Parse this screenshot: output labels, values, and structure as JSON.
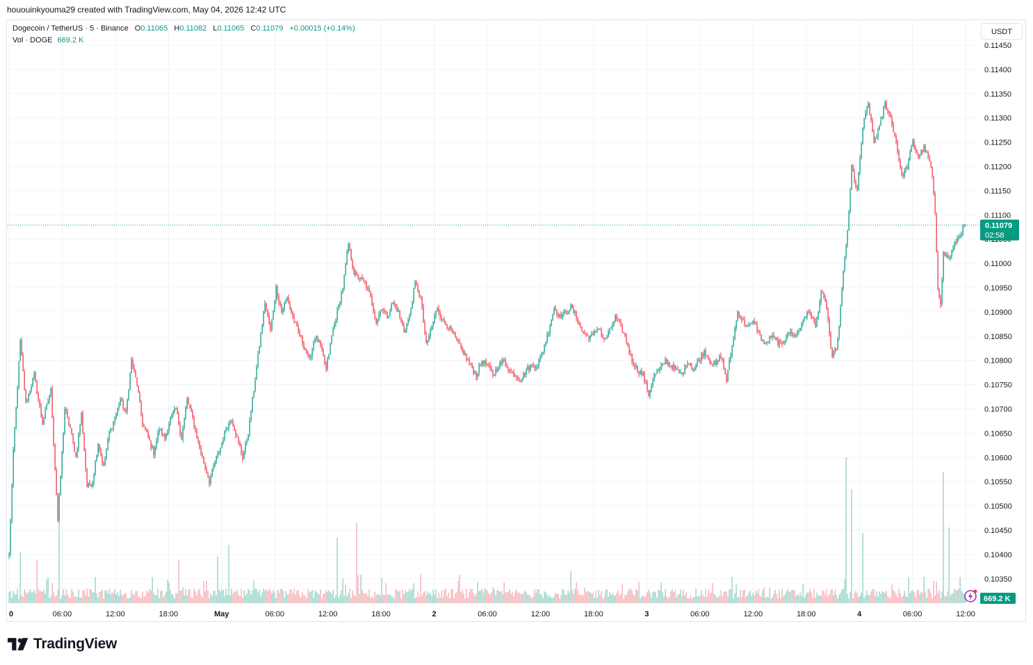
{
  "header": {
    "author_line": "hououinkyouma29 created with TradingView.com, May 04, 2026 12:42 UTC"
  },
  "legend": {
    "symbol": "Dogecoin / TetherUS · 5 · Binance",
    "open_label": "O",
    "open": "0.11065",
    "high_label": "H",
    "high": "0.11082",
    "low_label": "L",
    "low": "0.11065",
    "close_label": "C",
    "close": "0.11079",
    "change": "+0.00015 (+0.14%)",
    "volume_label": "Vol · DOGE",
    "volume_value": "669.2 K"
  },
  "price_scale": {
    "currency": "USDT",
    "last_price": "0.11079",
    "countdown": "02:58",
    "volume_badge": "669.2 K"
  },
  "brand": {
    "name": "TradingView"
  },
  "colors": {
    "up": "#089981",
    "down": "#f23645",
    "up_volume": "#8fcfc3",
    "down_volume": "#f4a9ae",
    "grid": "#f0f3fa",
    "text": "#131722"
  },
  "chart_data": {
    "type": "candlestick",
    "symbol": "Dogecoin / TetherUS",
    "interval": "5",
    "exchange": "Binance",
    "y_ticks": [
      "0.11450",
      "0.11400",
      "0.11350",
      "0.11300",
      "0.11250",
      "0.11200",
      "0.11150",
      "0.11100",
      "0.11050",
      "0.11000",
      "0.10950",
      "0.10900",
      "0.10850",
      "0.10800",
      "0.10750",
      "0.10700",
      "0.10650",
      "0.10600",
      "0.10550",
      "0.10500",
      "0.10450",
      "0.10400",
      "0.10350"
    ],
    "x_ticks": [
      "0",
      "06:00",
      "12:00",
      "18:00",
      "May",
      "06:00",
      "12:00",
      "18:00",
      "2",
      "06:00",
      "12:00",
      "18:00",
      "3",
      "06:00",
      "12:00",
      "18:00",
      "4",
      "06:00",
      "12:00"
    ],
    "ylim": [
      0.1032,
      0.1147
    ],
    "grid": true,
    "last_price": 0.11079,
    "price_path": [
      [
        0,
        0.104
      ],
      [
        3,
        0.1061
      ],
      [
        8,
        0.1084
      ],
      [
        12,
        0.1071
      ],
      [
        18,
        0.1077
      ],
      [
        24,
        0.1067
      ],
      [
        30,
        0.1074
      ],
      [
        35,
        0.1047
      ],
      [
        40,
        0.107
      ],
      [
        44,
        0.1066
      ],
      [
        48,
        0.106
      ],
      [
        52,
        0.1069
      ],
      [
        56,
        0.1054
      ],
      [
        60,
        0.1055
      ],
      [
        64,
        0.1063
      ],
      [
        68,
        0.1058
      ],
      [
        72,
        0.1065
      ],
      [
        76,
        0.1068
      ],
      [
        80,
        0.1072
      ],
      [
        84,
        0.1069
      ],
      [
        88,
        0.108
      ],
      [
        92,
        0.1075
      ],
      [
        96,
        0.1067
      ],
      [
        100,
        0.1064
      ],
      [
        104,
        0.1061
      ],
      [
        108,
        0.1066
      ],
      [
        112,
        0.1064
      ],
      [
        116,
        0.1068
      ],
      [
        120,
        0.107
      ],
      [
        124,
        0.1064
      ],
      [
        128,
        0.1072
      ],
      [
        132,
        0.1068
      ],
      [
        136,
        0.1063
      ],
      [
        140,
        0.1059
      ],
      [
        144,
        0.1055
      ],
      [
        148,
        0.1059
      ],
      [
        152,
        0.1062
      ],
      [
        156,
        0.1066
      ],
      [
        160,
        0.1068
      ],
      [
        164,
        0.1064
      ],
      [
        168,
        0.106
      ],
      [
        172,
        0.1065
      ],
      [
        176,
        0.1074
      ],
      [
        180,
        0.1083
      ],
      [
        184,
        0.1092
      ],
      [
        188,
        0.1086
      ],
      [
        192,
        0.1095
      ],
      [
        196,
        0.109
      ],
      [
        200,
        0.1093
      ],
      [
        204,
        0.1089
      ],
      [
        208,
        0.1086
      ],
      [
        212,
        0.1083
      ],
      [
        216,
        0.108
      ],
      [
        220,
        0.1085
      ],
      [
        224,
        0.1083
      ],
      [
        228,
        0.1078
      ],
      [
        232,
        0.1085
      ],
      [
        236,
        0.109
      ],
      [
        240,
        0.1095
      ],
      [
        244,
        0.1104
      ],
      [
        248,
        0.1098
      ],
      [
        252,
        0.1097
      ],
      [
        256,
        0.1096
      ],
      [
        260,
        0.1093
      ],
      [
        264,
        0.1088
      ],
      [
        268,
        0.1091
      ],
      [
        272,
        0.1089
      ],
      [
        276,
        0.1092
      ],
      [
        280,
        0.109
      ],
      [
        284,
        0.1086
      ],
      [
        288,
        0.1089
      ],
      [
        292,
        0.1096
      ],
      [
        296,
        0.1093
      ],
      [
        300,
        0.1083
      ],
      [
        304,
        0.1087
      ],
      [
        308,
        0.1091
      ],
      [
        312,
        0.1088
      ],
      [
        316,
        0.1087
      ],
      [
        320,
        0.1085
      ],
      [
        324,
        0.1083
      ],
      [
        328,
        0.1081
      ],
      [
        332,
        0.1079
      ],
      [
        336,
        0.1077
      ],
      [
        340,
        0.108
      ],
      [
        344,
        0.1079
      ],
      [
        348,
        0.1077
      ],
      [
        352,
        0.1079
      ],
      [
        356,
        0.108
      ],
      [
        360,
        0.1078
      ],
      [
        364,
        0.1077
      ],
      [
        368,
        0.1076
      ],
      [
        372,
        0.1078
      ],
      [
        376,
        0.1079
      ],
      [
        380,
        0.1079
      ],
      [
        384,
        0.1082
      ],
      [
        388,
        0.1086
      ],
      [
        392,
        0.1091
      ],
      [
        396,
        0.1089
      ],
      [
        400,
        0.109
      ],
      [
        404,
        0.1091
      ],
      [
        408,
        0.1089
      ],
      [
        412,
        0.1086
      ],
      [
        416,
        0.1085
      ],
      [
        420,
        0.1085
      ],
      [
        424,
        0.1087
      ],
      [
        428,
        0.1084
      ],
      [
        432,
        0.1086
      ],
      [
        436,
        0.1089
      ],
      [
        440,
        0.1087
      ],
      [
        444,
        0.1084
      ],
      [
        448,
        0.108
      ],
      [
        452,
        0.1078
      ],
      [
        456,
        0.1077
      ],
      [
        460,
        0.1073
      ],
      [
        464,
        0.1077
      ],
      [
        468,
        0.1078
      ],
      [
        472,
        0.108
      ],
      [
        476,
        0.1079
      ],
      [
        480,
        0.1078
      ],
      [
        484,
        0.1077
      ],
      [
        488,
        0.108
      ],
      [
        492,
        0.1078
      ],
      [
        496,
        0.108
      ],
      [
        500,
        0.1082
      ],
      [
        504,
        0.108
      ],
      [
        508,
        0.1079
      ],
      [
        512,
        0.1081
      ],
      [
        516,
        0.1076
      ],
      [
        520,
        0.1083
      ],
      [
        524,
        0.109
      ],
      [
        528,
        0.1088
      ],
      [
        532,
        0.1087
      ],
      [
        536,
        0.1088
      ],
      [
        540,
        0.1085
      ],
      [
        544,
        0.1083
      ],
      [
        548,
        0.1085
      ],
      [
        552,
        0.1084
      ],
      [
        556,
        0.1083
      ],
      [
        560,
        0.1086
      ],
      [
        564,
        0.1085
      ],
      [
        568,
        0.1086
      ],
      [
        572,
        0.1089
      ],
      [
        576,
        0.109
      ],
      [
        580,
        0.1087
      ],
      [
        584,
        0.1094
      ],
      [
        588,
        0.1091
      ],
      [
        592,
        0.108
      ],
      [
        596,
        0.1084
      ],
      [
        600,
        0.1098
      ],
      [
        604,
        0.111
      ],
      [
        606,
        0.112
      ],
      [
        610,
        0.1115
      ],
      [
        614,
        0.1128
      ],
      [
        618,
        0.1133
      ],
      [
        622,
        0.1125
      ],
      [
        626,
        0.1128
      ],
      [
        630,
        0.1133
      ],
      [
        634,
        0.113
      ],
      [
        638,
        0.1125
      ],
      [
        642,
        0.1118
      ],
      [
        646,
        0.112
      ],
      [
        650,
        0.1125
      ],
      [
        654,
        0.1122
      ],
      [
        658,
        0.1124
      ],
      [
        662,
        0.1121
      ],
      [
        664,
        0.1118
      ],
      [
        666,
        0.111
      ],
      [
        668,
        0.1095
      ],
      [
        670,
        0.1092
      ],
      [
        672,
        0.1102
      ],
      [
        676,
        0.1101
      ],
      [
        680,
        0.1104
      ],
      [
        684,
        0.1106
      ],
      [
        688,
        0.1108
      ]
    ],
    "volume_spikes": [
      [
        8,
        0.35
      ],
      [
        20,
        0.3
      ],
      [
        36,
        0.55
      ],
      [
        122,
        0.3
      ],
      [
        150,
        0.32
      ],
      [
        158,
        0.4
      ],
      [
        236,
        0.45
      ],
      [
        250,
        0.55
      ],
      [
        296,
        0.2
      ],
      [
        404,
        0.22
      ],
      [
        520,
        0.18
      ],
      [
        602,
        1.0
      ],
      [
        606,
        0.78
      ],
      [
        614,
        0.48
      ],
      [
        672,
        0.9
      ],
      [
        676,
        0.52
      ]
    ],
    "volume_ylim": [
      0,
      1
    ],
    "plot_spacing": 2
  }
}
